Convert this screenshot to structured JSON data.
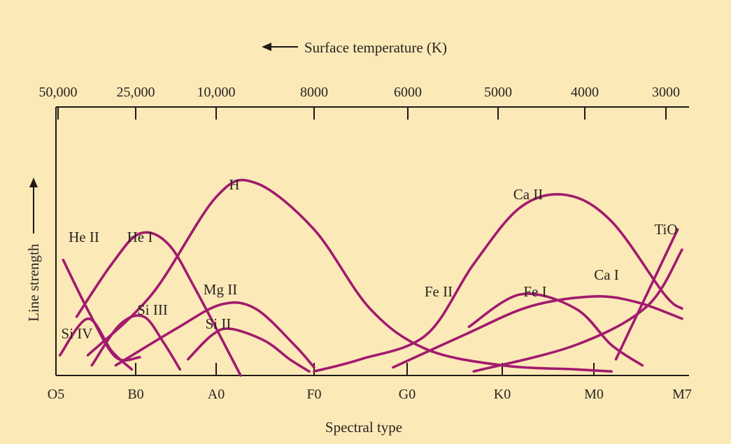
{
  "chart_data": {
    "type": "line",
    "title": "",
    "xlabel": "Spectral type",
    "ylabel": "Line strength",
    "top_axis_label": "Surface temperature (K)",
    "x_categories": [
      "O5",
      "B0",
      "A0",
      "F0",
      "G0",
      "K0",
      "M0",
      "M7"
    ],
    "temperature_ticks": [
      "50,000",
      "25,000",
      "10,000",
      "8000",
      "6000",
      "5000",
      "4000",
      "3000"
    ],
    "y_range": [
      0,
      1
    ],
    "grid": false,
    "legend": "none",
    "curve_color": "#a21a6e",
    "series": [
      {
        "name": "He II",
        "points": [
          [
            0.09,
            0.57
          ],
          [
            0.43,
            0.3
          ],
          [
            0.75,
            0.09
          ],
          [
            1.05,
            0.09
          ]
        ]
      },
      {
        "name": "He I",
        "points": [
          [
            0.26,
            0.29
          ],
          [
            0.7,
            0.55
          ],
          [
            1.05,
            0.7
          ],
          [
            1.4,
            0.65
          ],
          [
            1.75,
            0.42
          ],
          [
            2.25,
            0.0
          ]
        ]
      },
      {
        "name": "H",
        "points": [
          [
            0.4,
            0.1
          ],
          [
            1.2,
            0.4
          ],
          [
            2.0,
            0.88
          ],
          [
            2.4,
            0.95
          ],
          [
            3.0,
            0.72
          ],
          [
            3.6,
            0.33
          ],
          [
            4.2,
            0.13
          ],
          [
            5.0,
            0.05
          ],
          [
            5.8,
            0.03
          ],
          [
            6.2,
            0.02
          ]
        ]
      },
      {
        "name": "Si IV",
        "points": [
          [
            0.05,
            0.1
          ],
          [
            0.4,
            0.28
          ],
          [
            0.7,
            0.12
          ],
          [
            0.95,
            0.03
          ]
        ]
      },
      {
        "name": "Si III",
        "points": [
          [
            0.45,
            0.05
          ],
          [
            0.8,
            0.25
          ],
          [
            1.1,
            0.29
          ],
          [
            1.35,
            0.16
          ],
          [
            1.55,
            0.03
          ]
        ]
      },
      {
        "name": "Mg II",
        "points": [
          [
            0.75,
            0.05
          ],
          [
            1.5,
            0.23
          ],
          [
            2.05,
            0.35
          ],
          [
            2.4,
            0.33
          ],
          [
            2.8,
            0.15
          ],
          [
            3.0,
            0.04
          ]
        ]
      },
      {
        "name": "Si II",
        "points": [
          [
            1.65,
            0.08
          ],
          [
            1.95,
            0.2
          ],
          [
            2.15,
            0.23
          ],
          [
            2.5,
            0.17
          ],
          [
            2.75,
            0.08
          ],
          [
            2.95,
            0.02
          ]
        ]
      },
      {
        "name": "Ca II",
        "points": [
          [
            3.0,
            0.02
          ],
          [
            3.5,
            0.08
          ],
          [
            4.2,
            0.2
          ],
          [
            4.7,
            0.55
          ],
          [
            5.2,
            0.83
          ],
          [
            5.7,
            0.89
          ],
          [
            6.2,
            0.76
          ],
          [
            6.8,
            0.4
          ],
          [
            7.0,
            0.33
          ]
        ]
      },
      {
        "name": "Fe II",
        "points": [
          [
            4.65,
            0.24
          ],
          [
            5.2,
            0.4
          ],
          [
            5.8,
            0.33
          ],
          [
            6.2,
            0.15
          ],
          [
            6.55,
            0.05
          ]
        ]
      },
      {
        "name": "Fe I",
        "points": [
          [
            3.85,
            0.04
          ],
          [
            4.6,
            0.2
          ],
          [
            5.3,
            0.34
          ],
          [
            6.0,
            0.39
          ],
          [
            6.5,
            0.36
          ],
          [
            7.0,
            0.28
          ]
        ]
      },
      {
        "name": "Ca I",
        "points": [
          [
            4.7,
            0.02
          ],
          [
            5.8,
            0.15
          ],
          [
            6.6,
            0.34
          ],
          [
            7.0,
            0.62
          ]
        ]
      },
      {
        "name": "TiO",
        "points": [
          [
            6.25,
            0.08
          ],
          [
            6.6,
            0.4
          ],
          [
            6.95,
            0.72
          ]
        ]
      }
    ]
  }
}
